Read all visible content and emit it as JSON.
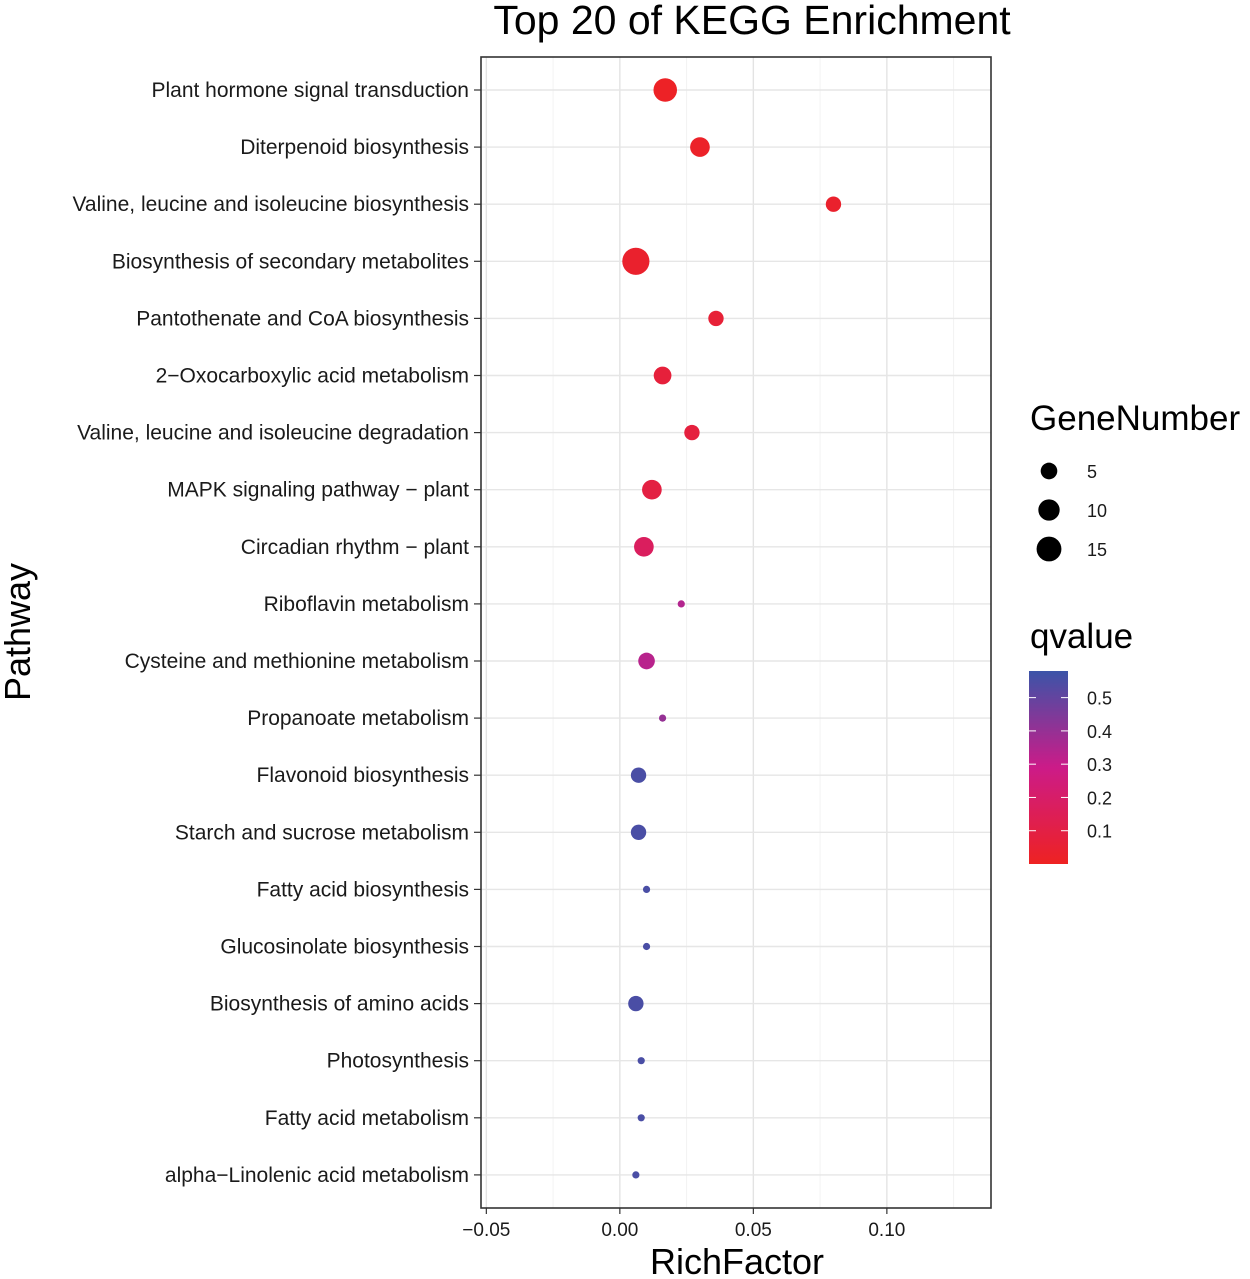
{
  "chart_data": {
    "type": "scatter",
    "title": "Top 20 of KEGG Enrichment",
    "xlabel": "RichFactor",
    "ylabel": "Pathway",
    "xlim": [
      -0.052,
      0.139
    ],
    "xticks": [
      -0.05,
      0.0,
      0.05,
      0.1
    ],
    "xtick_labels": [
      "−0.05",
      "0.00",
      "0.05",
      "0.10"
    ],
    "grid": true,
    "points": [
      {
        "pathway": "Plant hormone signal transduction",
        "richfactor": 0.017,
        "genes": 13,
        "qvalue": 0.01
      },
      {
        "pathway": "Diterpenoid biosynthesis",
        "richfactor": 0.03,
        "genes": 8,
        "qvalue": 0.02
      },
      {
        "pathway": "Valine, leucine and isoleucine biosynthesis",
        "richfactor": 0.08,
        "genes": 4,
        "qvalue": 0.03
      },
      {
        "pathway": "Biosynthesis of secondary metabolites",
        "richfactor": 0.006,
        "genes": 19,
        "qvalue": 0.03
      },
      {
        "pathway": "Pantothenate and CoA biosynthesis",
        "richfactor": 0.036,
        "genes": 4,
        "qvalue": 0.06
      },
      {
        "pathway": "2−Oxocarboxylic acid metabolism",
        "richfactor": 0.016,
        "genes": 6,
        "qvalue": 0.07
      },
      {
        "pathway": "Valine, leucine and isoleucine degradation",
        "richfactor": 0.027,
        "genes": 4,
        "qvalue": 0.08
      },
      {
        "pathway": "MAPK signaling pathway − plant",
        "richfactor": 0.012,
        "genes": 8,
        "qvalue": 0.09
      },
      {
        "pathway": "Circadian rhythm − plant",
        "richfactor": 0.009,
        "genes": 8,
        "qvalue": 0.17
      },
      {
        "pathway": "Riboflavin metabolism",
        "richfactor": 0.023,
        "genes": 1,
        "qvalue": 0.34
      },
      {
        "pathway": "Cysteine and methionine metabolism",
        "richfactor": 0.01,
        "genes": 5,
        "qvalue": 0.33
      },
      {
        "pathway": "Propanoate metabolism",
        "richfactor": 0.016,
        "genes": 1,
        "qvalue": 0.4
      },
      {
        "pathway": "Flavonoid biosynthesis",
        "richfactor": 0.007,
        "genes": 4,
        "qvalue": 0.55
      },
      {
        "pathway": "Starch and sucrose metabolism",
        "richfactor": 0.007,
        "genes": 4,
        "qvalue": 0.55
      },
      {
        "pathway": "Fatty acid biosynthesis",
        "richfactor": 0.01,
        "genes": 1,
        "qvalue": 0.55
      },
      {
        "pathway": "Glucosinolate biosynthesis",
        "richfactor": 0.01,
        "genes": 1,
        "qvalue": 0.55
      },
      {
        "pathway": "Biosynthesis of amino acids",
        "richfactor": 0.006,
        "genes": 4,
        "qvalue": 0.55
      },
      {
        "pathway": "Photosynthesis",
        "richfactor": 0.008,
        "genes": 1,
        "qvalue": 0.55
      },
      {
        "pathway": "Fatty acid metabolism",
        "richfactor": 0.008,
        "genes": 1,
        "qvalue": 0.55
      },
      {
        "pathway": "alpha−Linolenic acid metabolism",
        "richfactor": 0.006,
        "genes": 1,
        "qvalue": 0.55
      }
    ],
    "size_legend": {
      "title": "GeneNumber",
      "values": [
        5,
        10,
        15
      ],
      "labels": [
        "5",
        "10",
        "15"
      ]
    },
    "color_legend": {
      "title": "qvalue",
      "range": [
        0.0,
        0.58
      ],
      "breaks": [
        0.5,
        0.4,
        0.3,
        0.2,
        0.1
      ],
      "labels": [
        "0.5",
        "0.4",
        "0.3",
        "0.2",
        "0.1"
      ],
      "low_color": "#ee2222",
      "mid_color": "#cc1b88",
      "high_color": "#3b54a8"
    }
  }
}
